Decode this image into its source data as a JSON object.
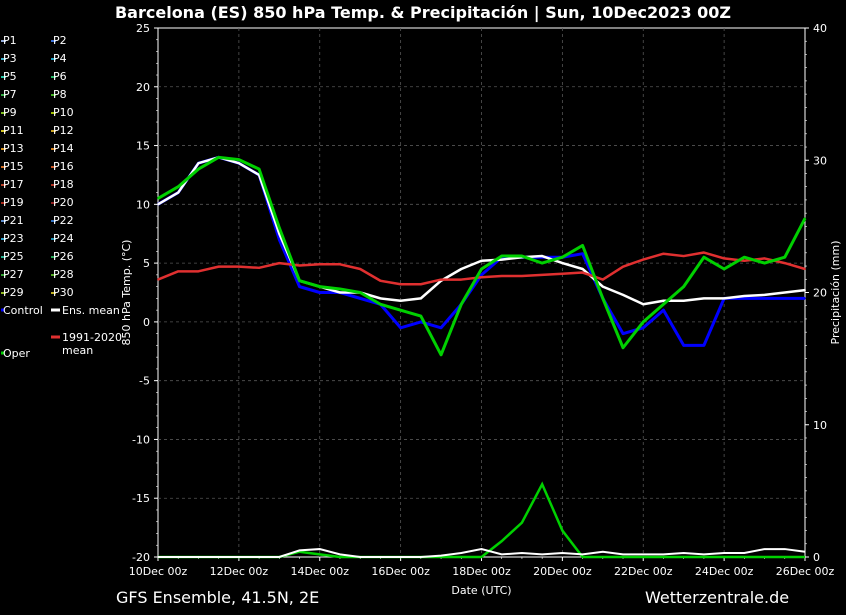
{
  "title": "Barcelona  (ES)  850 hPa Temp. & Precipitación | Sun, 10Dec2023 00Z",
  "footer_left": "GFS Ensemble, 41.5N, 2E",
  "footer_right": "Wetterzentrale.de",
  "legend": [
    {
      "label": "P1",
      "color": "#8fa8d8"
    },
    {
      "label": "P2",
      "color": "#3a6fd8"
    },
    {
      "label": "P3",
      "color": "#40b0c8"
    },
    {
      "label": "P4",
      "color": "#20a0c0"
    },
    {
      "label": "P5",
      "color": "#20c0a0"
    },
    {
      "label": "P6",
      "color": "#20b060"
    },
    {
      "label": "P7",
      "color": "#30a840"
    },
    {
      "label": "P8",
      "color": "#40b020"
    },
    {
      "label": "P9",
      "color": "#80c020"
    },
    {
      "label": "P10",
      "color": "#a0c000"
    },
    {
      "label": "P11",
      "color": "#d0c020"
    },
    {
      "label": "P12",
      "color": "#c8a020"
    },
    {
      "label": "P13",
      "color": "#d09020"
    },
    {
      "label": "P14",
      "color": "#d08020"
    },
    {
      "label": "P15",
      "color": "#c86820"
    },
    {
      "label": "P16",
      "color": "#c05020"
    },
    {
      "label": "P17",
      "color": "#b84028"
    },
    {
      "label": "P18",
      "color": "#b03020"
    },
    {
      "label": "P19",
      "color": "#a82818"
    },
    {
      "label": "P20",
      "color": "#902020"
    },
    {
      "label": "P21",
      "color": "#5888c8"
    },
    {
      "label": "P22",
      "color": "#3070c0"
    },
    {
      "label": "P23",
      "color": "#30a0c8"
    },
    {
      "label": "P24",
      "color": "#2090b0"
    },
    {
      "label": "P25",
      "color": "#20a888"
    },
    {
      "label": "P26",
      "color": "#20a050"
    },
    {
      "label": "P27",
      "color": "#30a030"
    },
    {
      "label": "P28",
      "color": "#50a820"
    },
    {
      "label": "P29",
      "color": "#90b820"
    },
    {
      "label": "P30",
      "color": "#c0b020"
    },
    {
      "label": "Control",
      "color": "#0000ff"
    },
    {
      "label": "Ens. mean",
      "color": "#ffffff"
    },
    {
      "label": "1991-2020\nmean",
      "color": "#e03030"
    },
    {
      "label": "Oper",
      "color": "#00d000"
    }
  ],
  "chart_data": {
    "type": "line",
    "x": [
      "2023-12-10 00z",
      "2023-12-10 12z",
      "2023-12-11 00z",
      "2023-12-11 12z",
      "2023-12-12 00z",
      "2023-12-12 12z",
      "2023-12-13 00z",
      "2023-12-13 12z",
      "2023-12-14 00z",
      "2023-12-14 12z",
      "2023-12-15 00z",
      "2023-12-15 12z",
      "2023-12-16 00z",
      "2023-12-16 12z",
      "2023-12-17 00z",
      "2023-12-17 12z",
      "2023-12-18 00z",
      "2023-12-18 12z",
      "2023-12-19 00z",
      "2023-12-19 12z",
      "2023-12-20 00z",
      "2023-12-20 12z",
      "2023-12-21 00z",
      "2023-12-21 12z",
      "2023-12-22 00z",
      "2023-12-22 12z",
      "2023-12-23 00z",
      "2023-12-23 12z",
      "2023-12-24 00z",
      "2023-12-24 12z",
      "2023-12-25 00z",
      "2023-12-25 12z",
      "2023-12-26 00z"
    ],
    "xlabel": "Date (UTC)",
    "xticks": [
      "10Dec 00z",
      "12Dec 00z",
      "14Dec 00z",
      "16Dec 00z",
      "18Dec 00z",
      "20Dec 00z",
      "22Dec 00z",
      "24Dec 00z",
      "26Dec 00z"
    ],
    "ylabel": "850 hPa Temp. (°C)",
    "ylim": [
      -20,
      25
    ],
    "yticks": [
      25,
      20,
      15,
      10,
      5,
      0,
      -5,
      -10,
      -15,
      -20
    ],
    "y2label": "Precipitación (mm)",
    "y2lim": [
      0,
      40
    ],
    "y2ticks": [
      40,
      30,
      20,
      10,
      0
    ],
    "grid": true,
    "series": [
      {
        "name": "Control",
        "color": "#0000ff",
        "values": [
          10,
          11,
          13.5,
          14,
          13.5,
          12.5,
          7,
          3,
          2.5,
          2.5,
          2,
          1.5,
          -0.5,
          0,
          -0.5,
          1.5,
          4,
          5.5,
          5.5,
          5.5,
          5.5,
          5.8,
          2,
          -1,
          -0.5,
          1,
          -2,
          -2,
          2,
          2,
          2,
          2,
          2
        ]
      },
      {
        "name": "Ens. mean",
        "color": "#ffffff",
        "values": [
          10,
          11,
          13.5,
          14,
          13.5,
          12.5,
          7.5,
          3.5,
          3,
          2.5,
          2.5,
          2,
          1.8,
          2,
          3.5,
          4.5,
          5.2,
          5.3,
          5.5,
          5.6,
          5,
          4.5,
          3,
          2.3,
          1.5,
          1.8,
          1.8,
          2,
          2,
          2.2,
          2.3,
          2.5,
          2.7
        ]
      },
      {
        "name": "1991-2020 mean",
        "color": "#e03030",
        "values": [
          3.6,
          4.3,
          4.3,
          4.7,
          4.7,
          4.6,
          5,
          4.8,
          4.9,
          4.9,
          4.5,
          3.5,
          3.2,
          3.2,
          3.6,
          3.6,
          3.8,
          3.9,
          3.9,
          4,
          4.1,
          4.2,
          3.6,
          4.7,
          5.3,
          5.8,
          5.6,
          5.9,
          5.4,
          5.2,
          5.4,
          5,
          4.5
        ]
      },
      {
        "name": "Oper",
        "color": "#00d000",
        "values": [
          10.5,
          11.5,
          13,
          14,
          13.8,
          13,
          8,
          3.5,
          3,
          2.8,
          2.5,
          1.5,
          1,
          0.5,
          -2.8,
          1.5,
          4.5,
          5.6,
          5.6,
          5,
          5.5,
          6.5,
          2,
          -2.2,
          0,
          1.5,
          3,
          5.5,
          4.5,
          5.5,
          5,
          5.5,
          8.8
        ]
      }
    ],
    "precip_series": [
      {
        "name": "Oper",
        "color": "#00d000",
        "values": [
          0,
          0,
          0,
          0,
          0,
          0,
          0,
          0.4,
          0.2,
          0,
          0,
          0,
          0,
          0,
          0,
          0,
          0,
          1.2,
          2.6,
          5.5,
          2,
          0,
          0,
          0,
          0,
          0,
          0,
          0,
          0,
          0,
          0,
          0,
          0
        ]
      },
      {
        "name": "Ens. mean",
        "color": "#ffffff",
        "values": [
          0,
          0,
          0,
          0,
          0,
          0,
          0,
          0.5,
          0.6,
          0.2,
          0,
          0,
          0,
          0,
          0.1,
          0.3,
          0.6,
          0.2,
          0.3,
          0.2,
          0.3,
          0.2,
          0.4,
          0.2,
          0.2,
          0.2,
          0.3,
          0.2,
          0.3,
          0.3,
          0.6,
          0.6,
          0.4
        ]
      }
    ]
  }
}
